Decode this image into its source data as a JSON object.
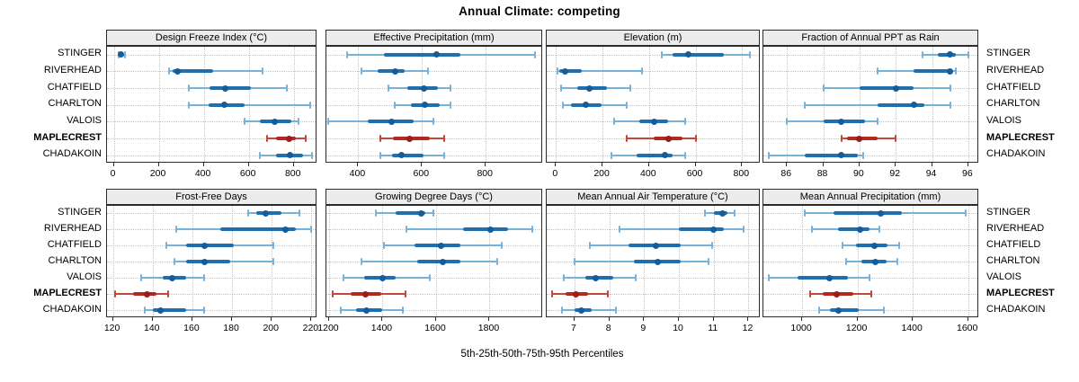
{
  "title": "Annual Climate: competing",
  "footer": "5th-25th-50th-75th-95th Percentiles",
  "categories": [
    "STINGER",
    "RIVERHEAD",
    "CHATFIELD",
    "CHARLTON",
    "VALOIS",
    "MAPLECREST",
    "CHADAKOIN"
  ],
  "highlight_category": "MAPLECREST",
  "colors": {
    "blue_whisker": "#79b2d9",
    "blue_iqr": "#1e6fb0",
    "blue_dot": "#155d99",
    "red_whisker": "#c4473a",
    "red_iqr": "#b3281f",
    "red_dot": "#9c1c1c",
    "strip_bg": "#ececec",
    "border": "#2b2b2b",
    "grid": "#c4c4c4"
  },
  "chart_data": {
    "type": "scatter",
    "mark": "percentile-interval-dot",
    "title": "Annual Climate: competing",
    "caption": "5th-25th-50th-75th-95th Percentiles",
    "categories": [
      "STINGER",
      "RIVERHEAD",
      "CHATFIELD",
      "CHARLTON",
      "VALOIS",
      "MAPLECREST",
      "CHADAKOIN"
    ],
    "percentiles": [
      5,
      25,
      50,
      75,
      95
    ],
    "legend_position": "none",
    "grid": "dotted",
    "panels": [
      {
        "title": "Design Freeze Index (°C)",
        "xlim": [
          -30,
          905
        ],
        "ticks": [
          0,
          200,
          400,
          600,
          800
        ],
        "series": [
          {
            "name": "STINGER",
            "values": [
              20,
              27,
              33,
              40,
              48
            ]
          },
          {
            "name": "RIVERHEAD",
            "values": [
              245,
              262,
              285,
              440,
              660
            ]
          },
          {
            "name": "CHATFIELD",
            "values": [
              335,
              425,
              495,
              610,
              770
            ]
          },
          {
            "name": "CHARLTON",
            "values": [
              335,
              420,
              490,
              580,
              875
            ]
          },
          {
            "name": "VALOIS",
            "values": [
              580,
              650,
              715,
              790,
              820
            ]
          },
          {
            "name": "MAPLECREST",
            "values": [
              680,
              720,
              780,
              810,
              855
            ]
          },
          {
            "name": "CHADAKOIN",
            "values": [
              650,
              720,
              785,
              840,
              880
            ]
          }
        ]
      },
      {
        "title": "Effective Precipitation (mm)",
        "xlim": [
          300,
          980
        ],
        "ticks": [
          400,
          600,
          800
        ],
        "series": [
          {
            "name": "STINGER",
            "values": [
              365,
              480,
              645,
              720,
              955
            ]
          },
          {
            "name": "RIVERHEAD",
            "values": [
              410,
              460,
              515,
              545,
              620
            ]
          },
          {
            "name": "CHATFIELD",
            "values": [
              495,
              555,
              605,
              650,
              690
            ]
          },
          {
            "name": "CHARLTON",
            "values": [
              515,
              565,
              610,
              655,
              690
            ]
          },
          {
            "name": "VALOIS",
            "values": [
              305,
              430,
              505,
              575,
              635
            ]
          },
          {
            "name": "MAPLECREST",
            "values": [
              470,
              510,
              560,
              625,
              670
            ]
          },
          {
            "name": "CHADAKOIN",
            "values": [
              470,
              505,
              535,
              605,
              670
            ]
          }
        ]
      },
      {
        "title": "Elevation (m)",
        "xlim": [
          -40,
          880
        ],
        "ticks": [
          0,
          200,
          400,
          600,
          800
        ],
        "series": [
          {
            "name": "STINGER",
            "values": [
              455,
              500,
              570,
              720,
              835
            ]
          },
          {
            "name": "RIVERHEAD",
            "values": [
              5,
              15,
              40,
              110,
              370
            ]
          },
          {
            "name": "CHATFIELD",
            "values": [
              20,
              90,
              145,
              220,
              320
            ]
          },
          {
            "name": "CHARLTON",
            "values": [
              30,
              65,
              130,
              195,
              305
            ]
          },
          {
            "name": "VALOIS",
            "values": [
              250,
              360,
              420,
              480,
              555
            ]
          },
          {
            "name": "MAPLECREST",
            "values": [
              305,
              420,
              485,
              545,
              600
            ]
          },
          {
            "name": "CHADAKOIN",
            "values": [
              240,
              345,
              470,
              500,
              555
            ]
          }
        ]
      },
      {
        "title": "Fraction of Annual PPT as Rain",
        "xlim": [
          84.7,
          96.6
        ],
        "ticks": [
          86,
          88,
          90,
          92,
          94,
          96
        ],
        "series": [
          {
            "name": "STINGER",
            "values": [
              93.5,
              94.3,
              95.0,
              95.3,
              96.0
            ]
          },
          {
            "name": "RIVERHEAD",
            "values": [
              91.0,
              93.0,
              95.0,
              95.1,
              95.3
            ]
          },
          {
            "name": "CHATFIELD",
            "values": [
              88.0,
              90.0,
              92.0,
              93.0,
              95.0
            ]
          },
          {
            "name": "CHARLTON",
            "values": [
              87.0,
              91.0,
              93.0,
              93.6,
              95.0
            ]
          },
          {
            "name": "VALOIS",
            "values": [
              86.0,
              88.0,
              89.0,
              90.3,
              91.0
            ]
          },
          {
            "name": "MAPLECREST",
            "values": [
              89.0,
              89.3,
              90.0,
              91.0,
              92.0
            ]
          },
          {
            "name": "CHADAKOIN",
            "values": [
              85.0,
              87.0,
              89.0,
              89.9,
              90.2
            ]
          }
        ]
      },
      {
        "title": "Frost-Free Days",
        "xlim": [
          117,
          223
        ],
        "ticks": [
          120,
          140,
          160,
          180,
          200,
          220
        ],
        "series": [
          {
            "name": "STINGER",
            "values": [
              188,
              192,
              197,
              205,
              214
            ]
          },
          {
            "name": "RIVERHEAD",
            "values": [
              152,
              174,
              207,
              212,
              220
            ]
          },
          {
            "name": "CHATFIELD",
            "values": [
              147,
              157,
              166,
              181,
              201
            ]
          },
          {
            "name": "CHARLTON",
            "values": [
              151,
              157,
              166,
              179,
              201
            ]
          },
          {
            "name": "VALOIS",
            "values": [
              134,
              145,
              150,
              157,
              166
            ]
          },
          {
            "name": "MAPLECREST",
            "values": [
              121,
              130,
              137,
              142,
              148
            ]
          },
          {
            "name": "CHADAKOIN",
            "values": [
              136,
              140,
              144,
              157,
              166
            ]
          }
        ]
      },
      {
        "title": "Growing Degree Days (°C)",
        "xlim": [
          1190,
          2000
        ],
        "ticks": [
          1200,
          1400,
          1600,
          1800
        ],
        "series": [
          {
            "name": "STINGER",
            "values": [
              1375,
              1450,
              1545,
              1560,
              1590
            ]
          },
          {
            "name": "RIVERHEAD",
            "values": [
              1490,
              1700,
              1805,
              1870,
              1960
            ]
          },
          {
            "name": "CHATFIELD",
            "values": [
              1405,
              1520,
              1620,
              1690,
              1845
            ]
          },
          {
            "name": "CHARLTON",
            "values": [
              1320,
              1530,
              1625,
              1690,
              1830
            ]
          },
          {
            "name": "VALOIS",
            "values": [
              1255,
              1330,
              1400,
              1450,
              1575
            ]
          },
          {
            "name": "MAPLECREST",
            "values": [
              1215,
              1280,
              1335,
              1395,
              1485
            ]
          },
          {
            "name": "CHADAKOIN",
            "values": [
              1245,
              1300,
              1340,
              1400,
              1475
            ]
          }
        ]
      },
      {
        "title": "Mean Annual Air Temperature (°C)",
        "xlim": [
          6.2,
          12.35
        ],
        "ticks": [
          7,
          8,
          9,
          10,
          11,
          12
        ],
        "series": [
          {
            "name": "STINGER",
            "values": [
              10.75,
              11.0,
              11.25,
              11.4,
              11.6
            ]
          },
          {
            "name": "RIVERHEAD",
            "values": [
              8.3,
              10.0,
              11.0,
              11.3,
              11.85
            ]
          },
          {
            "name": "CHATFIELD",
            "values": [
              7.45,
              8.55,
              9.35,
              10.05,
              10.95
            ]
          },
          {
            "name": "CHARLTON",
            "values": [
              7.0,
              8.7,
              9.4,
              10.05,
              10.85
            ]
          },
          {
            "name": "VALOIS",
            "values": [
              6.7,
              7.3,
              7.6,
              8.1,
              8.75
            ]
          },
          {
            "name": "MAPLECREST",
            "values": [
              6.35,
              6.75,
              7.05,
              7.4,
              7.95
            ]
          },
          {
            "name": "CHADAKOIN",
            "values": [
              6.65,
              7.0,
              7.2,
              7.5,
              8.2
            ]
          }
        ]
      },
      {
        "title": "Mean Annual Precipitation (mm)",
        "xlim": [
          860,
          1640
        ],
        "ticks": [
          1000,
          1200,
          1400,
          1600
        ],
        "series": [
          {
            "name": "STINGER",
            "values": [
              1010,
              1115,
              1285,
              1360,
              1590
            ]
          },
          {
            "name": "RIVERHEAD",
            "values": [
              1035,
              1130,
              1210,
              1245,
              1280
            ]
          },
          {
            "name": "CHATFIELD",
            "values": [
              1145,
              1195,
              1260,
              1310,
              1350
            ]
          },
          {
            "name": "CHARLTON",
            "values": [
              1160,
              1215,
              1265,
              1305,
              1345
            ]
          },
          {
            "name": "VALOIS",
            "values": [
              880,
              985,
              1100,
              1165,
              1245
            ]
          },
          {
            "name": "MAPLECREST",
            "values": [
              1030,
              1075,
              1125,
              1185,
              1250
            ]
          },
          {
            "name": "CHADAKOIN",
            "values": [
              1060,
              1100,
              1130,
              1205,
              1295
            ]
          }
        ]
      }
    ]
  }
}
